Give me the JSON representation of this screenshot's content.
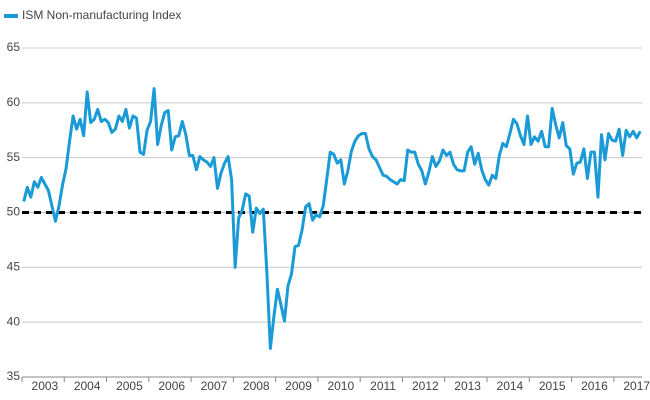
{
  "chart_data": {
    "type": "line",
    "categories": [
      null,
      null,
      null,
      null,
      null,
      null,
      "2003",
      null,
      null,
      null,
      null,
      null,
      null,
      null,
      null,
      null,
      null,
      null,
      "2004",
      null,
      null,
      null,
      null,
      null,
      null,
      null,
      null,
      null,
      null,
      null,
      "2005",
      null,
      null,
      null,
      null,
      null,
      null,
      null,
      null,
      null,
      null,
      null,
      "2006",
      null,
      null,
      null,
      null,
      null,
      null,
      null,
      null,
      null,
      null,
      null,
      "2007",
      null,
      null,
      null,
      null,
      null,
      null,
      null,
      null,
      null,
      null,
      null,
      "2008",
      null,
      null,
      null,
      null,
      null,
      null,
      null,
      null,
      null,
      null,
      null,
      "2009",
      null,
      null,
      null,
      null,
      null,
      null,
      null,
      null,
      null,
      null,
      null,
      "2010",
      null,
      null,
      null,
      null,
      null,
      null,
      null,
      null,
      null,
      null,
      null,
      "2011",
      null,
      null,
      null,
      null,
      null,
      null,
      null,
      null,
      null,
      null,
      null,
      "2012",
      null,
      null,
      null,
      null,
      null,
      null,
      null,
      null,
      null,
      null,
      null,
      "2013",
      null,
      null,
      null,
      null,
      null,
      null,
      null,
      null,
      null,
      null,
      null,
      "2014",
      null,
      null,
      null,
      null,
      null,
      null,
      null,
      null,
      null,
      null,
      null,
      "2015",
      null,
      null,
      null,
      null,
      null,
      null,
      null,
      null,
      null,
      null,
      null,
      "2016",
      null,
      null,
      null,
      null,
      null,
      null,
      null,
      null,
      null,
      null,
      null,
      "2017",
      null
    ],
    "series": [
      {
        "name": "ISM Non-manufacturing Index",
        "color": "#1a9ad6",
        "values": [
          51.0,
          52.3,
          51.4,
          52.8,
          52.3,
          53.2,
          52.6,
          52.0,
          50.6,
          49.2,
          50.6,
          52.5,
          54.0,
          56.5,
          58.8,
          57.6,
          58.5,
          57.0,
          61.0,
          58.2,
          58.5,
          59.4,
          58.3,
          58.5,
          58.2,
          57.3,
          57.6,
          58.8,
          58.3,
          59.4,
          57.7,
          58.8,
          58.6,
          55.5,
          55.3,
          57.5,
          58.3,
          61.3,
          56.2,
          57.9,
          59.1,
          59.3,
          55.7,
          56.9,
          57.0,
          58.3,
          57.1,
          55.2,
          55.2,
          53.9,
          55.1,
          54.8,
          54.6,
          54.2,
          55.0,
          52.2,
          53.6,
          54.5,
          55.1,
          53.0,
          45.0,
          49.5,
          50.2,
          51.7,
          51.5,
          48.2,
          50.4,
          49.9,
          50.3,
          44.6,
          37.6,
          40.5,
          43.0,
          41.6,
          40.1,
          43.3,
          44.4,
          46.9,
          47.0,
          48.4,
          50.5,
          50.8,
          49.3,
          49.8,
          49.6,
          50.6,
          53.0,
          55.5,
          55.3,
          54.5,
          54.8,
          52.6,
          53.8,
          55.6,
          56.5,
          57.0,
          57.2,
          57.2,
          55.8,
          55.1,
          54.8,
          54.1,
          53.4,
          53.3,
          53.0,
          52.8,
          52.6,
          53.0,
          52.9,
          55.7,
          55.5,
          55.5,
          54.4,
          53.8,
          52.6,
          53.7,
          55.1,
          54.2,
          54.7,
          55.7,
          55.2,
          55.5,
          54.4,
          53.9,
          53.8,
          53.8,
          55.5,
          56.0,
          54.4,
          55.4,
          53.9,
          53.0,
          52.5,
          53.4,
          53.1,
          55.2,
          56.3,
          56.0,
          57.2,
          58.5,
          58.1,
          57.0,
          56.2,
          58.8,
          56.2,
          56.9,
          56.5,
          57.4,
          56.0,
          56.0,
          59.5,
          58.0,
          56.8,
          58.2,
          56.1,
          55.8,
          53.5,
          54.5,
          54.6,
          55.8,
          53.1,
          55.5,
          55.5,
          51.4,
          57.1,
          54.8,
          57.2,
          56.6,
          56.5,
          57.6,
          55.2,
          57.5,
          56.9,
          57.4,
          56.8,
          57.4
        ]
      }
    ],
    "ylim": [
      35,
      65
    ],
    "yticks": [
      35,
      40,
      45,
      50,
      55,
      60,
      65
    ],
    "grid": true,
    "reference_line": {
      "value": 50,
      "color": "#000000"
    },
    "legend": "top-left"
  }
}
